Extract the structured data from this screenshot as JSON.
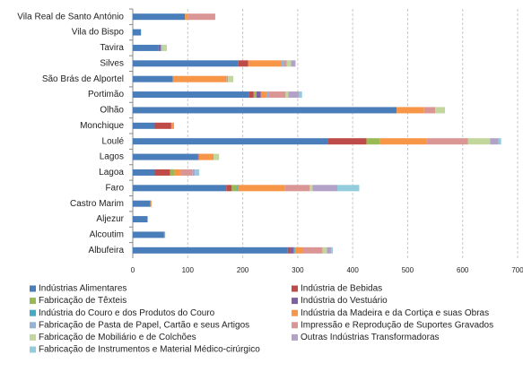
{
  "chart_data": {
    "type": "stacked-barh",
    "categories": [
      "Vila Real de Santo António",
      "Vila do Bispo",
      "Tavira",
      "Silves",
      "São Brás de Alportel",
      "Portimão",
      "Olhão",
      "Monchique",
      "Loulé",
      "Lagos",
      "Lagoa",
      "Faro",
      "Castro Marim",
      "Aljezur",
      "Alcoutim",
      "Albufeira"
    ],
    "series": [
      {
        "name": "Indústrias Alimentares",
        "color": "#4a7ebb",
        "values": [
          95,
          15,
          47,
          192,
          73,
          212,
          480,
          40,
          355,
          118,
          40,
          170,
          32,
          27,
          57,
          282
        ]
      },
      {
        "name": "Indústria de Bebidas",
        "color": "#be4b48",
        "values": [
          0,
          0,
          0,
          18,
          0,
          8,
          0,
          30,
          70,
          0,
          28,
          10,
          0,
          0,
          0,
          5
        ]
      },
      {
        "name": "Fabricação de Têxteis",
        "color": "#98b954",
        "values": [
          0,
          0,
          0,
          0,
          0,
          5,
          0,
          0,
          25,
          0,
          8,
          10,
          0,
          0,
          2,
          0
        ]
      },
      {
        "name": "Indústria do Vestuário",
        "color": "#7d60a0",
        "values": [
          0,
          0,
          4,
          0,
          0,
          8,
          0,
          0,
          0,
          2,
          0,
          0,
          0,
          0,
          0,
          5
        ]
      },
      {
        "name": "Indústria do Couro e dos Produtos do Couro",
        "color": "#46aac5",
        "values": [
          0,
          0,
          0,
          0,
          0,
          0,
          0,
          0,
          0,
          0,
          0,
          2,
          0,
          0,
          0,
          3
        ]
      },
      {
        "name": "Indústria da Madeira e da Cortiça e suas Obras",
        "color": "#f79646",
        "values": [
          5,
          0,
          0,
          60,
          97,
          10,
          50,
          5,
          85,
          27,
          12,
          85,
          2,
          0,
          0,
          15
        ]
      },
      {
        "name": "Fabricação de Pasta de Papel, Cartão e seus Artigos",
        "color": "#95b3d7",
        "values": [
          0,
          0,
          2,
          5,
          0,
          5,
          0,
          0,
          0,
          0,
          0,
          0,
          0,
          0,
          0,
          0
        ]
      },
      {
        "name": "Impressão e Reprodução de Suportes Gravados",
        "color": "#d99694",
        "values": [
          50,
          0,
          0,
          5,
          3,
          30,
          20,
          0,
          75,
          0,
          20,
          45,
          0,
          0,
          0,
          35
        ]
      },
      {
        "name": "Fabricação de Mobiliário e de Colchões",
        "color": "#c3d69b",
        "values": [
          0,
          0,
          9,
          8,
          10,
          5,
          18,
          0,
          40,
          10,
          0,
          5,
          0,
          0,
          0,
          8
        ]
      },
      {
        "name": "Outras Indústrias Transformadoras",
        "color": "#b3a2c7",
        "values": [
          0,
          0,
          0,
          8,
          0,
          20,
          0,
          0,
          15,
          0,
          5,
          45,
          0,
          0,
          0,
          8
        ]
      },
      {
        "name": "Fabricação de Instrumentos e Material Médico-cirúrgico",
        "color": "#93cddd",
        "values": [
          0,
          0,
          0,
          0,
          0,
          5,
          0,
          0,
          5,
          0,
          8,
          40,
          0,
          0,
          0,
          3
        ]
      }
    ],
    "xlim": [
      0,
      700
    ],
    "xticks": [
      0,
      100,
      200,
      300,
      400,
      500,
      600,
      700
    ],
    "grid": true
  }
}
